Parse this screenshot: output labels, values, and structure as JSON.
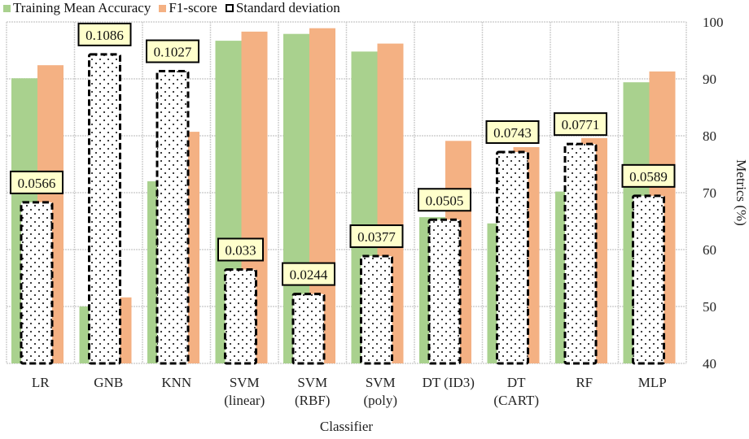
{
  "chart_data": {
    "type": "bar",
    "title": "",
    "xlabel": "Classifier",
    "ylabel": "Metrics (%)",
    "ylim": [
      40,
      100
    ],
    "yticks": [
      40,
      50,
      60,
      70,
      80,
      90,
      100
    ],
    "grid": true,
    "legend_position": "top-left",
    "categories": [
      [
        "LR"
      ],
      [
        "GNB"
      ],
      [
        "KNN"
      ],
      [
        "SVM",
        "(linear)"
      ],
      [
        "SVM",
        "(RBF)"
      ],
      [
        "SVM",
        "(poly)"
      ],
      [
        "DT (ID3)"
      ],
      [
        "DT",
        "(CART)"
      ],
      [
        "RF"
      ],
      [
        "MLP"
      ]
    ],
    "series": [
      {
        "name": "Training Mean Accuracy",
        "color": "#a9d18e",
        "values": [
          90.1,
          50.0,
          72.0,
          96.7,
          97.9,
          94.8,
          65.7,
          64.6,
          70.2,
          89.4
        ]
      },
      {
        "name": "F1-score",
        "color": "#f4b183",
        "values": [
          92.4,
          51.6,
          80.7,
          98.3,
          98.9,
          96.2,
          79.1,
          78.0,
          79.6,
          91.3
        ]
      },
      {
        "name": "Standard deviation",
        "color": "#000000",
        "values": [
          0.0566,
          0.1086,
          0.1027,
          0.033,
          0.0244,
          0.0377,
          0.0505,
          0.0743,
          0.0771,
          0.0589
        ],
        "labels": [
          "0.0566",
          "0.1086",
          "0.1027",
          "0.033",
          "0.0244",
          "0.0377",
          "0.0505",
          "0.0743",
          "0.0771",
          "0.0589"
        ]
      }
    ]
  }
}
